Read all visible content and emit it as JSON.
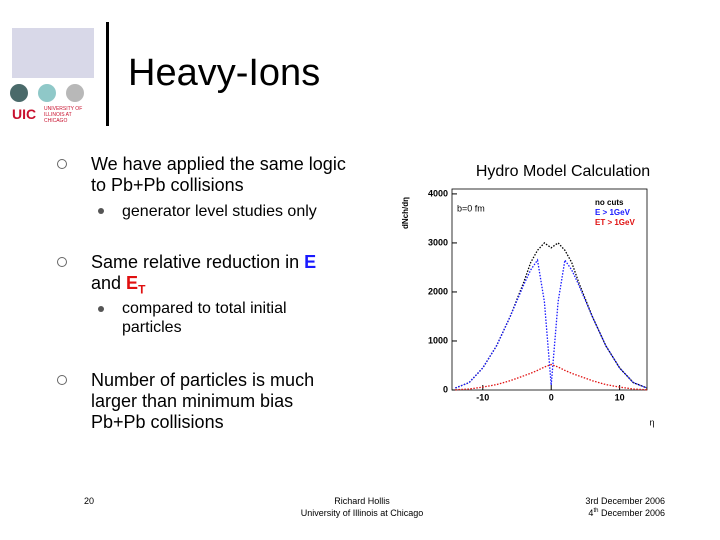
{
  "header": {
    "title": "Heavy-Ions",
    "logo_text": "UIC",
    "logo_subtext": "UNIVERSITY OF ILLINOIS AT CHICAGO"
  },
  "bullets": [
    {
      "text": "We have applied the same logic to Pb+Pb collisions",
      "sub": "generator level studies only"
    },
    {
      "parts": [
        "Same relative reduction in ",
        "E",
        " and ",
        "E",
        "T"
      ],
      "sub": "compared to total initial particles"
    },
    {
      "text": "Number of particles is much larger than minimum bias Pb+Pb collisions"
    }
  ],
  "footer": {
    "page": "20",
    "author": "Richard Hollis",
    "institution": "University of Illinois at Chicago",
    "date1": [
      "3",
      "rd",
      " December 2006"
    ],
    "date2": [
      "4",
      "th",
      " December 2006"
    ]
  },
  "chart_data": {
    "type": "line",
    "title": "Hydro Model Calculation",
    "y_label": "dNch/dη",
    "x_label": "η",
    "annotation": "b=0 fm",
    "x": [
      -14,
      -12,
      -10,
      -8,
      -6,
      -4,
      -3,
      -2,
      -1,
      0,
      1,
      2,
      3,
      4,
      6,
      8,
      10,
      12,
      14
    ],
    "series": [
      {
        "name": "no cuts",
        "color": "#000000",
        "values": [
          40,
          150,
          450,
          900,
          1500,
          2200,
          2600,
          2850,
          3000,
          2900,
          3000,
          2850,
          2600,
          2200,
          1500,
          900,
          450,
          150,
          40
        ]
      },
      {
        "name": "E > 1GeV",
        "color": "#1a1aff",
        "values": [
          40,
          150,
          450,
          900,
          1500,
          2150,
          2450,
          2650,
          1800,
          100,
          1800,
          2650,
          2450,
          2150,
          1500,
          900,
          450,
          150,
          40
        ]
      },
      {
        "name": "ET > 1GeV",
        "color": "#e01010",
        "values": [
          5,
          20,
          60,
          110,
          190,
          290,
          340,
          400,
          470,
          520,
          470,
          400,
          340,
          290,
          190,
          110,
          60,
          20,
          5
        ]
      }
    ],
    "xlim": [
      -14.5,
      14
    ],
    "xticks": [
      -10,
      0,
      10
    ],
    "ylim": [
      0,
      4100
    ],
    "yticks": [
      0,
      1000,
      2000,
      3000,
      4000
    ],
    "legend": "top-right"
  }
}
